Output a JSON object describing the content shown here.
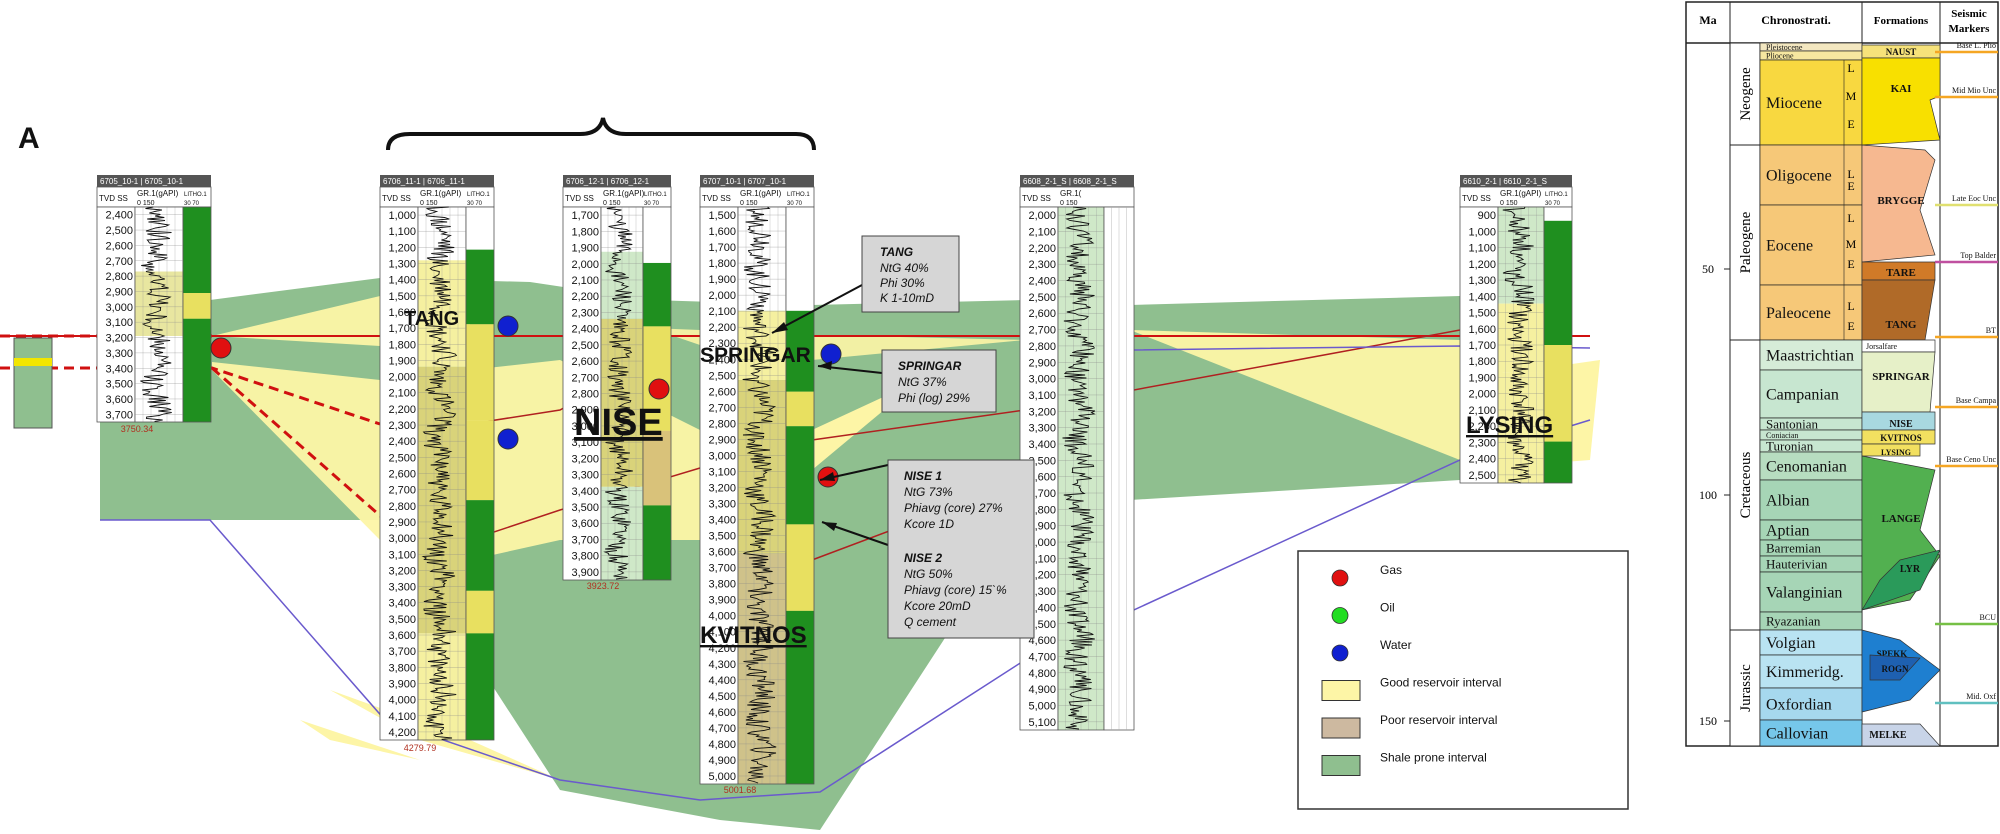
{
  "panel_letter": "A",
  "colors": {
    "shale": "#8fbf8f",
    "good_reservoir": "#fdf5a6",
    "poor_reservoir": "#cdb9a0",
    "gas": "#e01010",
    "oil": "#22dd22",
    "water": "#1020d0",
    "red_line": "#d01010",
    "purple_line": "#6a5acd"
  },
  "wells": [
    {
      "id": "w1",
      "title": "6705_10-1 | 6705_10-1",
      "hdr": {
        "tvd": "TVD SS",
        "gr": "GR.1(gAPI)",
        "gr_scale": "0     150",
        "lith": "LITHO.1",
        "lith_scale": "30   70"
      },
      "depths": [
        "2,400",
        "2,500",
        "2,600",
        "2,700",
        "2,800",
        "2,900",
        "3,000",
        "3,100",
        "3,200",
        "3,300",
        "3,400",
        "3,500",
        "3,600",
        "3,700"
      ],
      "td": "3750.34"
    },
    {
      "id": "w2",
      "title": "6706_11-1 | 6706_11-1",
      "hdr": {
        "tvd": "TVD SS",
        "gr": "GR.1(gAPI)",
        "gr_scale": "0     150",
        "lith": "LITHO.1",
        "lith_scale": "30   70"
      },
      "depths": [
        "1,000",
        "1,100",
        "1,200",
        "1,300",
        "1,400",
        "1,500",
        "1,600",
        "1,700",
        "1,800",
        "1,900",
        "2,000",
        "2,100",
        "2,200",
        "2,300",
        "2,400",
        "2,500",
        "2,600",
        "2,700",
        "2,800",
        "2,900",
        "3,000",
        "3,100",
        "3,200",
        "3,300",
        "3,400",
        "3,500",
        "3,600",
        "3,700",
        "3,800",
        "3,900",
        "4,000",
        "4,100",
        "4,200"
      ],
      "td": "4279.79"
    },
    {
      "id": "w3",
      "title": "6706_12-1 | 6706_12-1",
      "hdr": {
        "tvd": "TVD SS",
        "gr": "GR.1(gAPI)",
        "gr_scale": "0     150",
        "lith": "LITHO.1",
        "lith_scale": "30   70"
      },
      "depths": [
        "1,700",
        "1,800",
        "1,900",
        "2,000",
        "2,100",
        "2,200",
        "2,300",
        "2,400",
        "2,500",
        "2,600",
        "2,700",
        "2,800",
        "2,900",
        "3,000",
        "3,100",
        "3,200",
        "3,300",
        "3,400",
        "3,500",
        "3,600",
        "3,700",
        "3,800",
        "3,900"
      ],
      "td": "3923.72"
    },
    {
      "id": "w4",
      "title": "6707_10-1 | 6707_10-1",
      "hdr": {
        "tvd": "TVD SS",
        "gr": "GR.1(gAPI)",
        "gr_scale": "0     150",
        "lith": "LITHO.1",
        "lith_scale": "30   70"
      },
      "depths": [
        "1,500",
        "1,600",
        "1,700",
        "1,800",
        "1,900",
        "2,000",
        "2,100",
        "2,200",
        "2,300",
        "2,400",
        "2,500",
        "2,600",
        "2,700",
        "2,800",
        "2,900",
        "3,000",
        "3,100",
        "3,200",
        "3,300",
        "3,400",
        "3,500",
        "3,600",
        "3,700",
        "3,800",
        "3,900",
        "4,000",
        "4,100",
        "4,200",
        "4,300",
        "4,400",
        "4,500",
        "4,600",
        "4,700",
        "4,800",
        "4,900",
        "5,000"
      ],
      "td": "5001.68"
    },
    {
      "id": "w5",
      "title": "6608_2-1_S | 6608_2-1_S",
      "hdr": {
        "tvd": "TVD SS",
        "gr": "GR.1(",
        "gr_scale": "0     150",
        "lith": "",
        "lith_scale": ""
      },
      "depths": [
        "2,000",
        "2,100",
        "2,200",
        "2,300",
        "2,400",
        "2,500",
        "2,600",
        "2,700",
        "2,800",
        "2,900",
        "3,000",
        "3,100",
        "3,200",
        "3,300",
        "3,400",
        "3,500",
        "3,600",
        "3,700",
        "3,800",
        "3,900",
        "4,000",
        "4,100",
        "4,200",
        "4,300",
        "4,400",
        "4,500",
        "4,600",
        "4,700",
        "4,800",
        "4,900",
        "5,000",
        "5,100"
      ],
      "td": ""
    },
    {
      "id": "w6",
      "title": "6610_2-1 | 6610_2-1_S",
      "hdr": {
        "tvd": "TVD SS",
        "gr": "GR.1(gAPI)",
        "gr_scale": "0     150",
        "lith": "LITHO.1",
        "lith_scale": "30   70"
      },
      "depths": [
        "900",
        "1,000",
        "1,100",
        "1,200",
        "1,300",
        "1,400",
        "1,500",
        "1,600",
        "1,700",
        "1,800",
        "1,900",
        "2,000",
        "2,100",
        "2,200",
        "2,300",
        "2,400",
        "2,500"
      ],
      "td": ""
    }
  ],
  "formation_labels": {
    "tang": "TANG",
    "nise": "NISE",
    "springar": "SPRINGAR",
    "kvitnos": "KVITNOS",
    "lysing": "LYSING"
  },
  "callouts": {
    "tang": {
      "title": "TANG",
      "lines": [
        "NtG 40%",
        "Phi 30%",
        "K 1-10mD"
      ]
    },
    "springar": {
      "title": "SPRINGAR",
      "lines": [
        "NtG 37%",
        "Phi (log) 29%"
      ]
    },
    "nise": {
      "nise1_title": "NISE 1",
      "nise1_lines": [
        "NtG 73%",
        "Phiavg (core) 27%",
        "Kcore 1D"
      ],
      "nise2_title": "NISE 2",
      "nise2_lines": [
        "NtG 50%",
        "Phiavg (core) 15`%",
        "Kcore 20mD",
        "Q cement"
      ]
    }
  },
  "legend": {
    "items": [
      {
        "label": "Gas",
        "kind": "dot",
        "color": "#e01010"
      },
      {
        "label": "Oil",
        "kind": "dot",
        "color": "#22dd22"
      },
      {
        "label": "Water",
        "kind": "dot",
        "color": "#1020d0"
      },
      {
        "label": "Good reservoir interval",
        "kind": "box",
        "color": "#fdf5a6"
      },
      {
        "label": "Poor reservoir interval",
        "kind": "box",
        "color": "#cdb9a0"
      },
      {
        "label": "Shale prone interval",
        "kind": "box",
        "color": "#8fbf8f"
      }
    ]
  },
  "strat": {
    "headers": {
      "ma": "Ma",
      "chrono": "Chronostrati.",
      "formations": "Formations",
      "seismic": "Seismic Markers"
    },
    "ages": [
      "50",
      "100",
      "150"
    ],
    "systems": [
      "Neogene",
      "Paleogene",
      "Cretaceous",
      "Jurassic"
    ],
    "stages": [
      "Pleistocene",
      "Pliocene",
      "Miocene",
      "Oligocene",
      "Eocene",
      "Paleocene",
      "Maastrichtian",
      "Campanian",
      "Santonian",
      "Coniacian",
      "Turonian",
      "Cenomanian",
      "Albian",
      "Aptian",
      "Barremian",
      "Hauterivian",
      "Valanginian",
      "Ryazanian",
      "Volgian",
      "Kimmeridg.",
      "Oxfordian",
      "Callovian"
    ],
    "subdivisions": [
      "L",
      "M",
      "E",
      "L",
      "E",
      "L",
      "M",
      "E",
      "L",
      "E"
    ],
    "formations": [
      "NAUST",
      "KAI",
      "BRYGGE",
      "TARE",
      "TANG",
      "Jorsalfare",
      "SPRINGAR",
      "NISE",
      "KVITNOS",
      "LYSING",
      "LANGE",
      "LYR",
      "SPEKK",
      "ROGN",
      "MELKE"
    ],
    "markers": [
      "Base L. Plio",
      "Mid Mio Unc",
      "Late Eoc Unc",
      "Top Balder",
      "BT",
      "Base Campa",
      "Base Ceno Unc",
      "BCU",
      "Mid. Oxf"
    ]
  }
}
